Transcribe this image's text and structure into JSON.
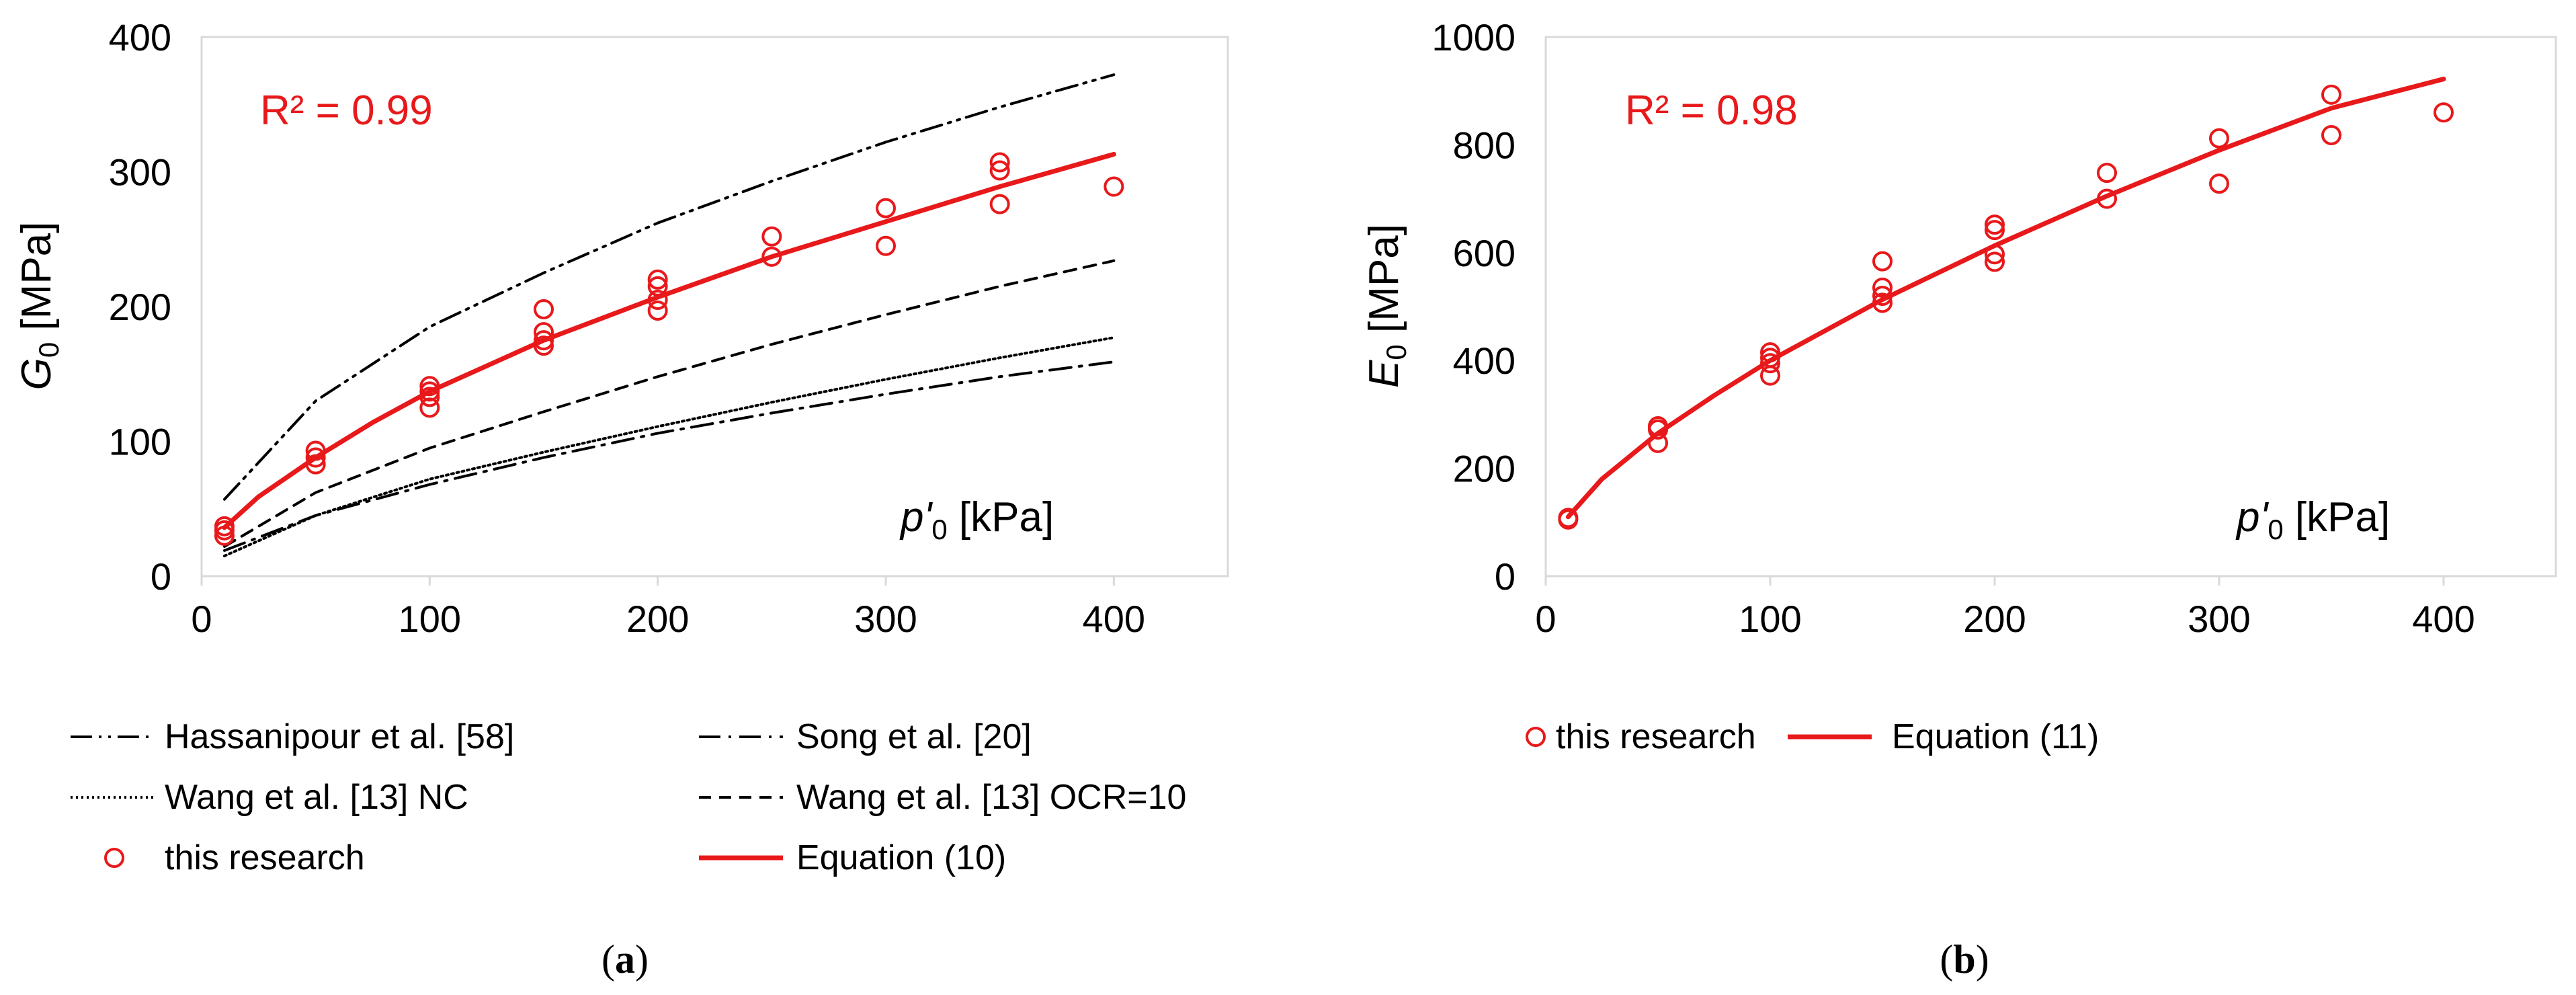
{
  "chart_data": [
    {
      "type": "line",
      "panel_label": "a",
      "ylabel_main": "G",
      "ylabel_sub": "0",
      "ylabel_unit": " [MPa]",
      "xlabel_main": "p'",
      "xlabel_sub": "0",
      "xlabel_unit": " [kPa]",
      "annotation": "R² = 0.99",
      "xlim": [
        0,
        450
      ],
      "ylim": [
        0,
        400
      ],
      "xticks": [
        0,
        100,
        200,
        300,
        400
      ],
      "yticks": [
        0,
        100,
        200,
        300,
        400
      ],
      "series": [
        {
          "name": "Hassanipour et al. [58]",
          "style": "dash-dot-dot",
          "color": "#000000",
          "x": [
            10,
            50,
            100,
            150,
            200,
            250,
            300,
            350,
            400
          ],
          "y": [
            57,
            130,
            185,
            225,
            262,
            293,
            322,
            348,
            372
          ]
        },
        {
          "name": "Song et al. [20]",
          "style": "dash-dot",
          "color": "#000000",
          "x": [
            10,
            50,
            100,
            150,
            200,
            250,
            300,
            350,
            400
          ],
          "y": [
            19,
            45,
            68,
            88,
            106,
            121,
            135,
            148,
            159
          ]
        },
        {
          "name": "Wang et al. [13] NC",
          "style": "dotted",
          "color": "#000000",
          "x": [
            10,
            50,
            100,
            150,
            200,
            250,
            300,
            350,
            400
          ],
          "y": [
            15,
            45,
            72,
            92,
            111,
            129,
            146,
            162,
            177
          ]
        },
        {
          "name": "Wang et al. [13] OCR=10",
          "style": "dashed",
          "color": "#000000",
          "x": [
            10,
            50,
            100,
            150,
            200,
            250,
            300,
            350,
            400
          ],
          "y": [
            22,
            62,
            95,
            122,
            148,
            172,
            194,
            215,
            234
          ]
        },
        {
          "name": "this research",
          "style": "markers",
          "color": "#e8191b",
          "x": [
            10,
            10,
            10,
            50,
            50,
            50,
            100,
            100,
            100,
            100,
            150,
            150,
            150,
            150,
            200,
            200,
            200,
            200,
            250,
            250,
            300,
            300,
            350,
            350,
            350,
            400
          ],
          "y": [
            30,
            34,
            37,
            83,
            88,
            93,
            125,
            133,
            137,
            141,
            171,
            175,
            181,
            198,
            197,
            205,
            215,
            220,
            237,
            252,
            245,
            273,
            276,
            301,
            307,
            289
          ]
        },
        {
          "name": "Equation (10)",
          "style": "solid",
          "color": "#e8191b",
          "x": [
            10,
            25,
            50,
            75,
            100,
            150,
            200,
            250,
            300,
            350,
            400
          ],
          "y": [
            36,
            59,
            88,
            114,
            137,
            175,
            207,
            237,
            263,
            289,
            313
          ]
        }
      ]
    },
    {
      "type": "line",
      "panel_label": "b",
      "ylabel_main": "E",
      "ylabel_sub": "0",
      "ylabel_unit": " [MPa]",
      "xlabel_main": "p'",
      "xlabel_sub": "0",
      "xlabel_unit": " [kPa]",
      "annotation": "R² = 0.98",
      "xlim": [
        0,
        450
      ],
      "ylim": [
        0,
        1000
      ],
      "xticks": [
        0,
        100,
        200,
        300,
        400
      ],
      "yticks": [
        0,
        200,
        400,
        600,
        800,
        1000
      ],
      "series": [
        {
          "name": "this research",
          "style": "markers",
          "color": "#e8191b",
          "x": [
            10,
            10,
            50,
            50,
            50,
            100,
            100,
            100,
            100,
            150,
            150,
            150,
            150,
            200,
            200,
            200,
            200,
            250,
            250,
            300,
            300,
            350,
            350,
            400
          ],
          "y": [
            105,
            108,
            247,
            272,
            278,
            372,
            395,
            405,
            415,
            507,
            520,
            535,
            584,
            583,
            597,
            642,
            652,
            700,
            748,
            728,
            812,
            818,
            893,
            860
          ]
        },
        {
          "name": "Equation (11)",
          "style": "solid",
          "color": "#e8191b",
          "x": [
            10,
            25,
            50,
            75,
            100,
            150,
            200,
            250,
            300,
            350,
            400
          ],
          "y": [
            110,
            180,
            265,
            335,
            400,
            513,
            613,
            705,
            790,
            868,
            922
          ]
        }
      ]
    }
  ]
}
